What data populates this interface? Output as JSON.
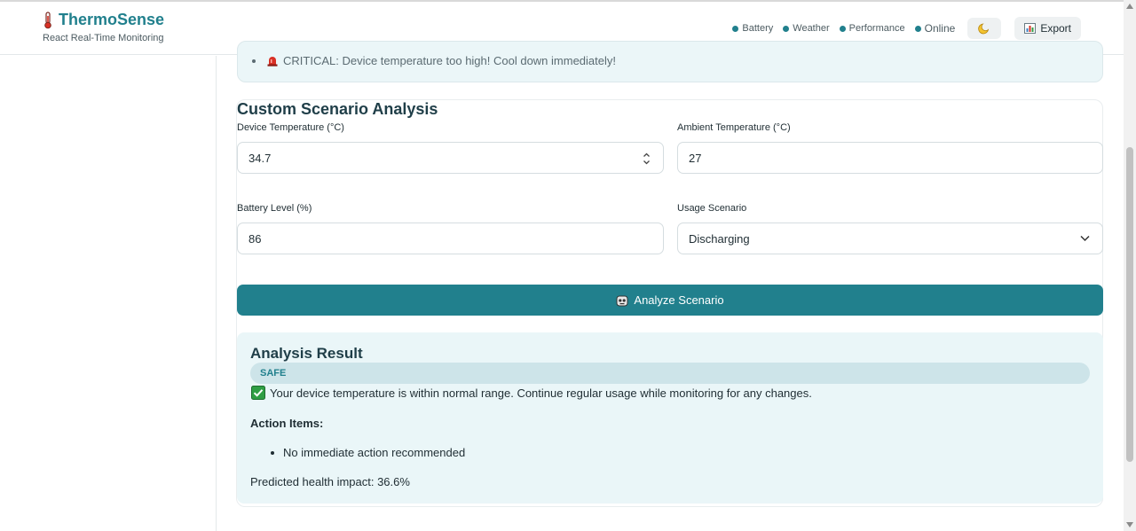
{
  "app": {
    "title": "ThermoSense",
    "subtitle": "React Real-Time Monitoring"
  },
  "header": {
    "status": [
      {
        "label": "Battery"
      },
      {
        "label": "Weather"
      },
      {
        "label": "Performance"
      }
    ],
    "online_label": "Online",
    "theme_icon": "moon-icon",
    "export_label": "Export"
  },
  "alert": {
    "text": "CRITICAL: Device temperature too high! Cool down immediately!"
  },
  "scenario": {
    "title": "Custom Scenario Analysis",
    "device_temp_label": "Device Temperature (°C)",
    "device_temp_value": "34.7",
    "ambient_temp_label": "Ambient Temperature (°C)",
    "ambient_temp_value": "27",
    "battery_label": "Battery Level (%)",
    "battery_value": "86",
    "usage_label": "Usage Scenario",
    "usage_value": "Discharging",
    "analyze_label": "Analyze Scenario"
  },
  "result": {
    "title": "Analysis Result",
    "badge": "SAFE",
    "message": "Your device temperature is within normal range. Continue regular usage while monitoring for any changes.",
    "action_title": "Action Items:",
    "actions": [
      "No immediate action recommended"
    ],
    "impact": "Predicted health impact: 36.6%"
  },
  "colors": {
    "accent": "#21808d",
    "result_bg": "#eaf6f8",
    "badge_bg": "#cde4e9",
    "alert_red": "#d93025"
  }
}
